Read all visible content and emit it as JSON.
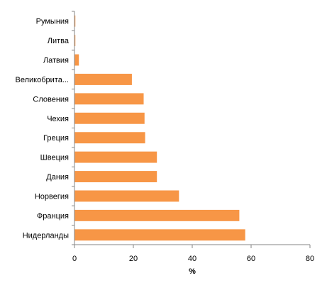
{
  "chart_data": {
    "type": "bar",
    "orientation": "horizontal",
    "categories": [
      "Румыния",
      "Литва",
      "Латвия",
      "Великобрита...",
      "Словения",
      "Чехия",
      "Греция",
      "Швеция",
      "Дания",
      "Норвегия",
      "Франция",
      "Нидерланды"
    ],
    "values": [
      0.3,
      0.3,
      1.5,
      19.5,
      23.5,
      23.8,
      24,
      28,
      28,
      35.5,
      56,
      58
    ],
    "xlabel": "%",
    "ylabel": "",
    "xlim": [
      0,
      80
    ],
    "xticks": [
      0,
      20,
      40,
      60,
      80
    ],
    "grid": false,
    "legend": "none",
    "bar_color": "#F79646",
    "axis_color": "#868686"
  }
}
